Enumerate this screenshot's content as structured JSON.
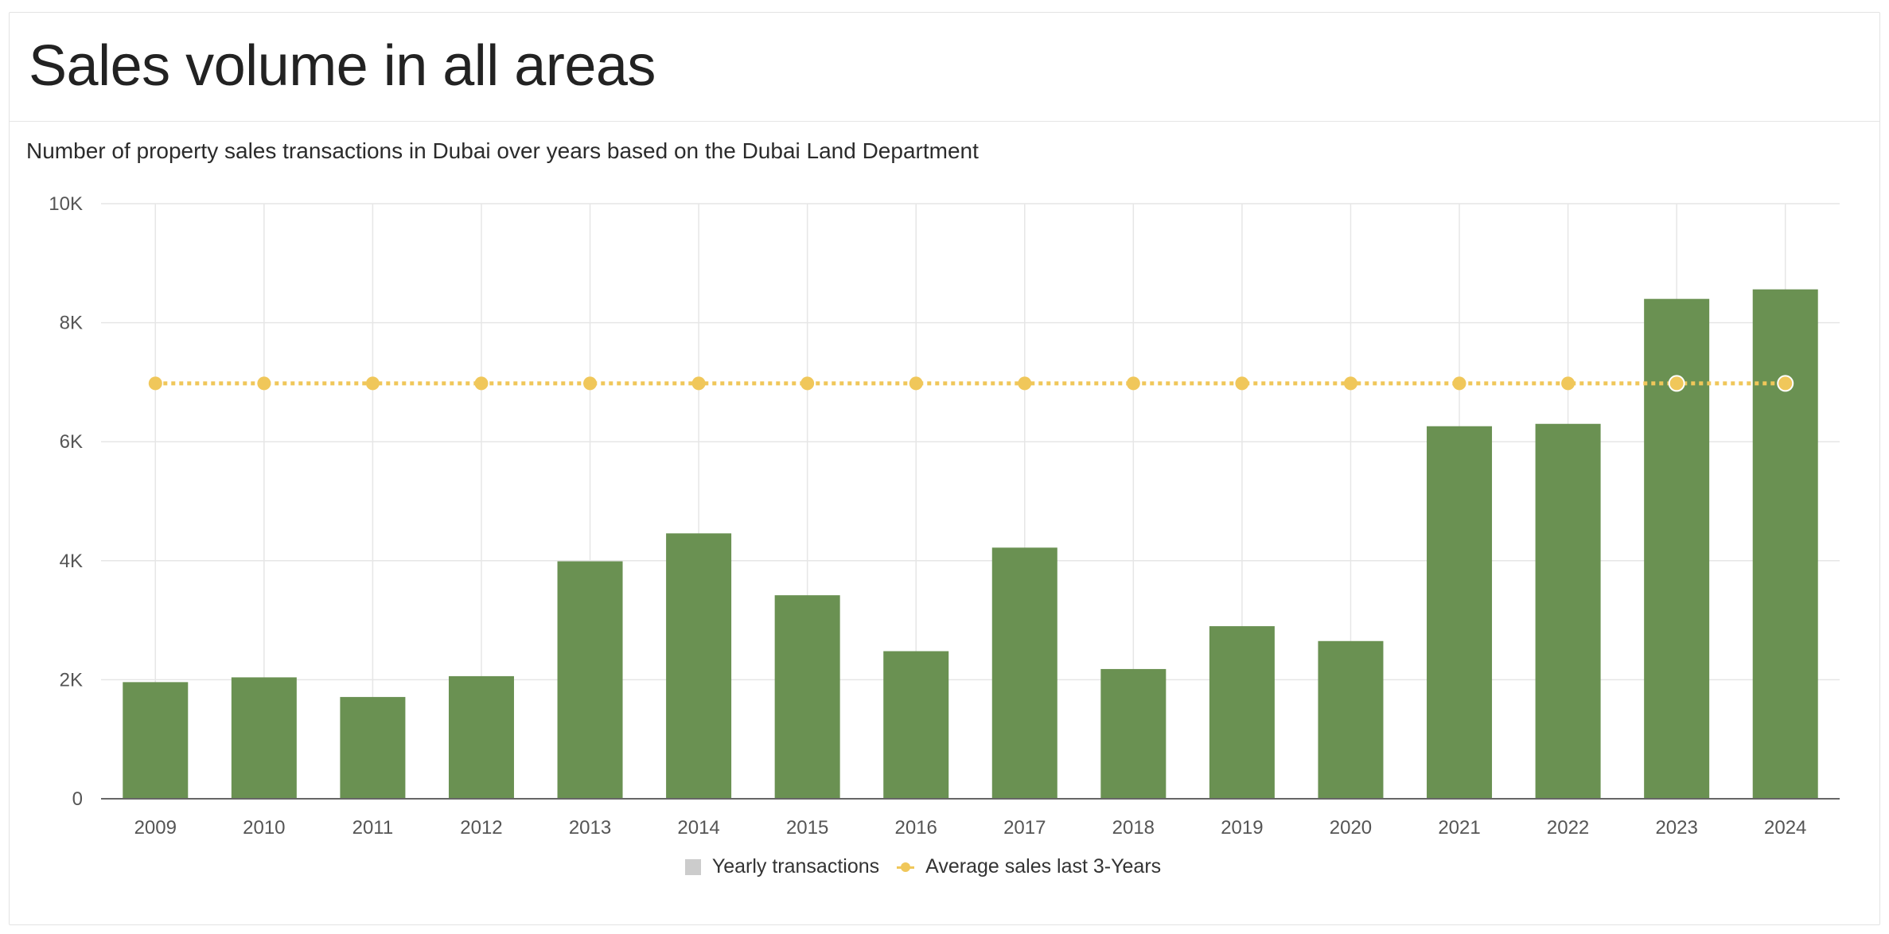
{
  "title": "Sales volume in all areas",
  "chart_data": {
    "type": "bar",
    "title": "",
    "subtitle": "Number of property sales transactions in Dubai over years based on the Dubai Land Department",
    "xlabel": "",
    "ylabel": "",
    "categories": [
      "2009",
      "2010",
      "2011",
      "2012",
      "2013",
      "2014",
      "2015",
      "2016",
      "2017",
      "2018",
      "2019",
      "2020",
      "2021",
      "2022",
      "2023",
      "2024"
    ],
    "ylim": [
      0,
      10000
    ],
    "yticks": [
      0,
      2000,
      4000,
      6000,
      8000,
      10000
    ],
    "ytick_labels": [
      "0",
      "2K",
      "4K",
      "6K",
      "8K",
      "10K"
    ],
    "grid": true,
    "legend_position": "bottom-center",
    "series": [
      {
        "name": "Yearly transactions",
        "type": "bar",
        "color": "#6a9152",
        "legend_color": "#cccccc",
        "values": [
          1960,
          2040,
          1710,
          2060,
          3990,
          4460,
          3420,
          2480,
          4220,
          2180,
          2900,
          2650,
          6260,
          6300,
          8400,
          8560
        ]
      },
      {
        "name": "Average sales last 3-Years",
        "type": "line",
        "style": "dotted",
        "color": "#f0c75a",
        "values": [
          6980,
          6980,
          6980,
          6980,
          6980,
          6980,
          6980,
          6980,
          6980,
          6980,
          6980,
          6980,
          6980,
          6980,
          6980,
          6980
        ]
      }
    ]
  }
}
